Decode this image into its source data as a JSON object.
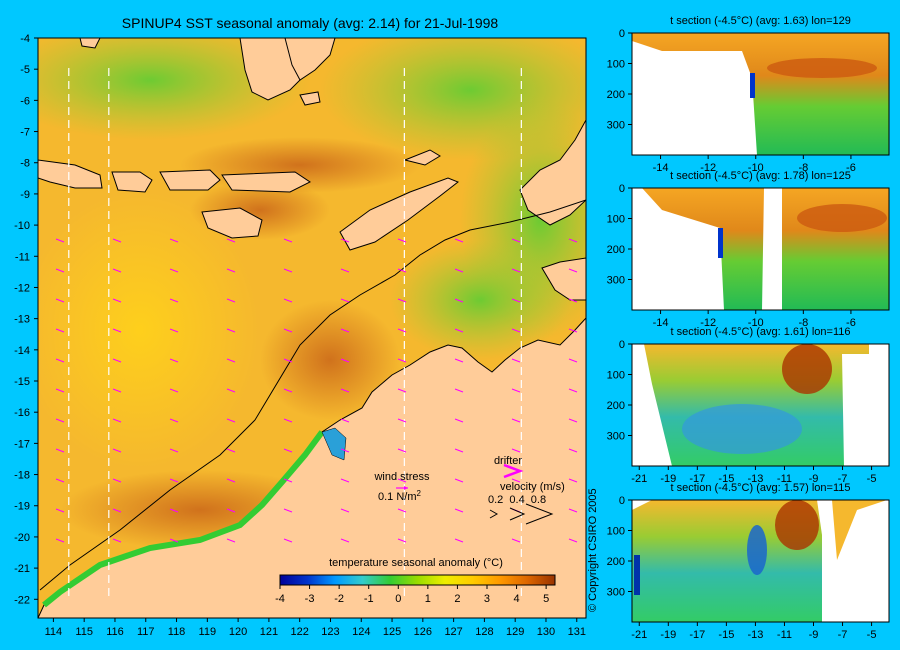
{
  "map": {
    "title": "SPINUP4 SST seasonal anomaly (avg: 2.14) for 21-Jul-1998",
    "lon_ticks": [
      114,
      115,
      116,
      117,
      118,
      119,
      120,
      121,
      122,
      123,
      124,
      125,
      126,
      127,
      128,
      129,
      130,
      131
    ],
    "lat_ticks": [
      -4,
      -5,
      -6,
      -7,
      -8,
      -9,
      -10,
      -11,
      -12,
      -13,
      -14,
      -15,
      -16,
      -17,
      -18,
      -19,
      -20,
      -21,
      -22
    ],
    "lon_range": [
      113.5,
      131.3
    ],
    "lat_range": [
      -4,
      -22.6
    ],
    "section_lons": [
      114.5,
      115.8,
      125.4,
      129.2
    ],
    "colors": {
      "land": "#ffcc99",
      "ocean_warm": "#f5b82e",
      "ocean_green": "#66cc33",
      "background": "#00c8ff",
      "vector": "#ff00ff",
      "coast": "#000000"
    }
  },
  "legend": {
    "wind_label": "wind stress",
    "wind_value": "0.1 N/m",
    "wind_value_sup": "2",
    "drifter_label": "drifter",
    "velocity_label": "velocity (m/s)",
    "velocity_ticks": "0.2  0.4  0.8",
    "colorbar_title": "temperature seasonal anomaly (°C)",
    "colorbar_ticks": [
      -4,
      -3,
      -2,
      -1,
      0,
      1,
      2,
      3,
      4,
      5
    ],
    "colorbar_range": [
      -4,
      5.3
    ],
    "colorbar_colors": [
      "#000099",
      "#0033cc",
      "#0099ff",
      "#33cccc",
      "#33cc33",
      "#99dd00",
      "#eeee00",
      "#ffcc00",
      "#ff9900",
      "#dd6600",
      "#993300"
    ]
  },
  "sections": [
    {
      "title": "t section (-4.5°C) (avg: 1.63) lon=129",
      "x_ticks": [
        -14,
        -12,
        -10,
        -8,
        -6
      ],
      "x_range": [
        -15.2,
        -4.4
      ],
      "y_ticks": [
        0,
        100,
        200,
        300
      ],
      "y_max": 400
    },
    {
      "title": "t section (-4.5°C) (avg: 1.78) lon=125",
      "x_ticks": [
        -14,
        -12,
        -10,
        -8,
        -6
      ],
      "x_range": [
        -15.2,
        -4.4
      ],
      "y_ticks": [
        0,
        100,
        200,
        300
      ],
      "y_max": 400
    },
    {
      "title": "t section (-4.5°C) (avg: 1.61) lon=116",
      "x_ticks": [
        -21,
        -19,
        -17,
        -15,
        -13,
        -11,
        -9,
        -7,
        -5
      ],
      "x_range": [
        -21.5,
        -3.8
      ],
      "y_ticks": [
        0,
        100,
        200,
        300
      ],
      "y_max": 400
    },
    {
      "title": "t section (-4.5°C) (avg: 1.57) lon=115",
      "x_ticks": [
        -21,
        -19,
        -17,
        -15,
        -13,
        -11,
        -9,
        -7,
        -5
      ],
      "x_range": [
        -21.5,
        -3.8
      ],
      "y_ticks": [
        0,
        100,
        200,
        300
      ],
      "y_max": 400
    }
  ],
  "copyright": "© Copyright CSIRO 2005"
}
